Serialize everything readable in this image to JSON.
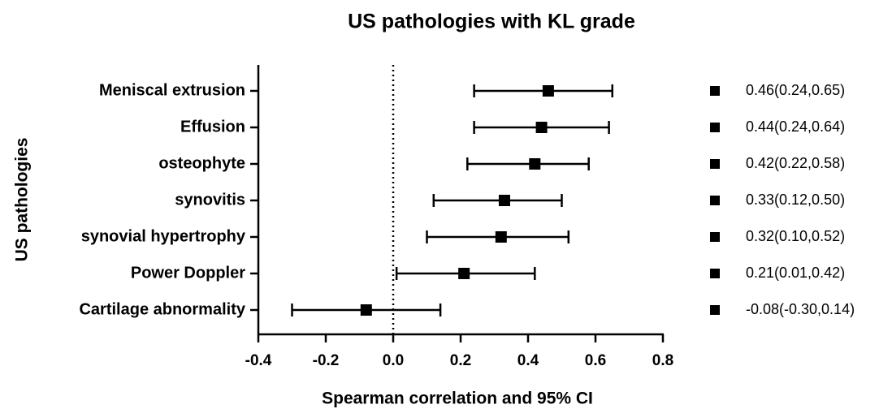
{
  "chart_data": {
    "type": "forest",
    "title": "US pathologies with KL grade",
    "x_label": "Spearman correlation and 95% CI",
    "y_label": "US pathologies",
    "categories": [
      "Meniscal extrusion",
      "Effusion",
      "osteophyte",
      "synovitis",
      "synovial hypertrophy",
      "Power Doppler",
      "Cartilage abnormality"
    ],
    "values": [
      0.46,
      0.44,
      0.42,
      0.33,
      0.32,
      0.21,
      -0.08
    ],
    "lower": [
      0.24,
      0.24,
      0.22,
      0.12,
      0.1,
      0.01,
      -0.3
    ],
    "upper": [
      0.65,
      0.64,
      0.58,
      0.5,
      0.52,
      0.42,
      0.14
    ],
    "value_labels": [
      "0.46(0.24,0.65)",
      "0.44(0.24,0.64)",
      "0.42(0.22,0.58)",
      "0.33(0.12,0.50)",
      "0.32(0.10,0.52)",
      "0.21(0.01,0.42)",
      "-0.08(-0.30,0.14)"
    ],
    "color": "#000000",
    "xlim": [
      -0.4,
      0.8
    ],
    "xticks": [
      -0.4,
      -0.2,
      {
        "value": 0,
        "label": "0.0"
      },
      0.2,
      0.4,
      0.6,
      0.8
    ]
  }
}
